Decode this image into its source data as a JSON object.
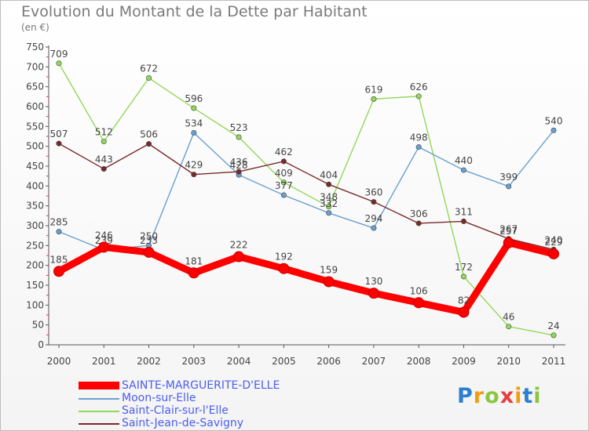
{
  "title": "Evolution du Montant de la Dette par Habitant",
  "unit": "(en €)",
  "logo": "Proxiti",
  "chart_data": {
    "type": "line",
    "x": [
      "2000",
      "2001",
      "2002",
      "2003",
      "2004",
      "2005",
      "2006",
      "2007",
      "2008",
      "2009",
      "2010",
      "2011"
    ],
    "ylim": [
      0,
      750
    ],
    "yticks": [
      0,
      50,
      100,
      150,
      200,
      250,
      300,
      350,
      400,
      450,
      500,
      550,
      600,
      650,
      700,
      750
    ],
    "grid": false,
    "legend": "bottom-left",
    "series": [
      {
        "name": "SAINTE-MARGUERITE-D'ELLE",
        "color": "#ff0000",
        "values": [
          185,
          246,
          233,
          181,
          222,
          192,
          159,
          130,
          106,
          82,
          257,
          229
        ]
      },
      {
        "name": "Moon-sur-Elle",
        "color": "#6aa0cf",
        "values": [
          285,
          239,
          250,
          534,
          428,
          377,
          332,
          294,
          498,
          440,
          399,
          540
        ]
      },
      {
        "name": "Saint-Clair-sur-l'Elle",
        "color": "#92d85a",
        "values": [
          709,
          512,
          672,
          596,
          523,
          409,
          348,
          619,
          626,
          172,
          46,
          24
        ]
      },
      {
        "name": "Saint-Jean-de-Savigny",
        "color": "#7a2a2a",
        "values": [
          507,
          443,
          506,
          429,
          436,
          462,
          404,
          360,
          306,
          311,
          267,
          240
        ]
      }
    ]
  }
}
